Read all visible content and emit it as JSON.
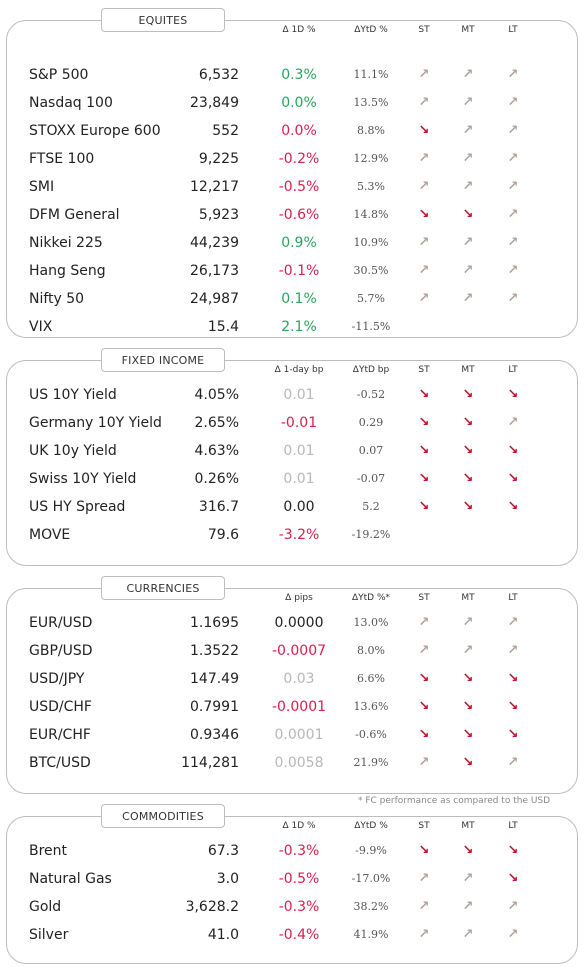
{
  "sections": [
    {
      "id": "equities",
      "title": "EQUITES",
      "headers": {
        "d1": "Δ 1D %",
        "ytd": "ΔYtD %",
        "st": "ST",
        "mt": "MT",
        "lt": "LT"
      },
      "rows": [
        {
          "name": "S&P 500",
          "value": "6,532",
          "d1": "0.3%",
          "d1_class": "pos",
          "ytd": "11.1%",
          "st": "up",
          "mt": "up",
          "lt": "up"
        },
        {
          "name": "Nasdaq 100",
          "value": "23,849",
          "d1": "0.0%",
          "d1_class": "pos",
          "ytd": "13.5%",
          "st": "up",
          "mt": "up",
          "lt": "up"
        },
        {
          "name": "STOXX Europe 600",
          "value": "552",
          "d1": "0.0%",
          "d1_class": "neg",
          "ytd": "8.8%",
          "st": "down",
          "mt": "up",
          "lt": "up"
        },
        {
          "name": "FTSE 100",
          "value": "9,225",
          "d1": "-0.2%",
          "d1_class": "neg",
          "ytd": "12.9%",
          "st": "up",
          "mt": "up",
          "lt": "up"
        },
        {
          "name": "SMI",
          "value": "12,217",
          "d1": "-0.5%",
          "d1_class": "neg",
          "ytd": "5.3%",
          "st": "up",
          "mt": "up",
          "lt": "up"
        },
        {
          "name": "DFM General",
          "value": "5,923",
          "d1": "-0.6%",
          "d1_class": "neg",
          "ytd": "14.8%",
          "st": "down",
          "mt": "down",
          "lt": "up"
        },
        {
          "name": "Nikkei 225",
          "value": "44,239",
          "d1": "0.9%",
          "d1_class": "pos",
          "ytd": "10.9%",
          "st": "up",
          "mt": "up",
          "lt": "up"
        },
        {
          "name": "Hang Seng",
          "value": "26,173",
          "d1": "-0.1%",
          "d1_class": "neg",
          "ytd": "30.5%",
          "st": "up",
          "mt": "up",
          "lt": "up"
        },
        {
          "name": "Nifty  50",
          "value": "24,987",
          "d1": "0.1%",
          "d1_class": "pos",
          "ytd": "5.7%",
          "st": "up",
          "mt": "up",
          "lt": "up"
        },
        {
          "name": "VIX",
          "value": "15.4",
          "d1": "2.1%",
          "d1_class": "pos",
          "ytd": "-11.5%",
          "st": "",
          "mt": "",
          "lt": ""
        }
      ]
    },
    {
      "id": "fixed-income",
      "title": "FIXED INCOME",
      "headers": {
        "d1": "Δ 1-day bp",
        "ytd": "ΔYtD bp",
        "st": "ST",
        "mt": "MT",
        "lt": "LT"
      },
      "rows": [
        {
          "name": "US 10Y Yield",
          "value": "4.05%",
          "d1": "0.01",
          "d1_class": "flat",
          "ytd": "-0.52",
          "st": "down",
          "mt": "down",
          "lt": "down"
        },
        {
          "name": "Germany 10Y Yield",
          "value": "2.65%",
          "d1": "-0.01",
          "d1_class": "neg",
          "ytd": "0.29",
          "st": "down",
          "mt": "down",
          "lt": "up"
        },
        {
          "name": "UK 10y Yield",
          "value": "4.63%",
          "d1": "0.01",
          "d1_class": "flat",
          "ytd": "0.07",
          "st": "down",
          "mt": "down",
          "lt": "down"
        },
        {
          "name": "Swiss 10Y Yield",
          "value": "0.26%",
          "d1": "0.01",
          "d1_class": "flat",
          "ytd": "-0.07",
          "st": "down",
          "mt": "down",
          "lt": "down"
        },
        {
          "name": "US HY Spread",
          "value": "316.7",
          "d1": "0.00",
          "d1_class": "neu",
          "ytd": "5.2",
          "st": "down",
          "mt": "down",
          "lt": "down"
        },
        {
          "name": "MOVE",
          "value": "79.6",
          "d1": "-3.2%",
          "d1_class": "neg",
          "ytd": "-19.2%",
          "st": "",
          "mt": "",
          "lt": ""
        }
      ]
    },
    {
      "id": "currencies",
      "title": "CURRENCIES",
      "headers": {
        "d1": "Δ pips",
        "ytd": "ΔYtD %*",
        "st": "ST",
        "mt": "MT",
        "lt": "LT"
      },
      "rows": [
        {
          "name": "EUR/USD",
          "value": "1.1695",
          "d1": "0.0000",
          "d1_class": "neu",
          "ytd": "13.0%",
          "st": "up",
          "mt": "up",
          "lt": "up"
        },
        {
          "name": "GBP/USD",
          "value": "1.3522",
          "d1": "-0.0007",
          "d1_class": "neg",
          "ytd": "8.0%",
          "st": "up",
          "mt": "up",
          "lt": "up"
        },
        {
          "name": "USD/JPY",
          "value": "147.49",
          "d1": "0.03",
          "d1_class": "flat",
          "ytd": "6.6%",
          "st": "down",
          "mt": "down",
          "lt": "down"
        },
        {
          "name": "USD/CHF",
          "value": "0.7991",
          "d1": "-0.0001",
          "d1_class": "neg",
          "ytd": "13.6%",
          "st": "down",
          "mt": "down",
          "lt": "down"
        },
        {
          "name": "EUR/CHF",
          "value": "0.9346",
          "d1": "0.0001",
          "d1_class": "flat",
          "ytd": "-0.6%",
          "st": "down",
          "mt": "down",
          "lt": "down"
        },
        {
          "name": "BTC/USD",
          "value": "114,281",
          "d1": "0.0058",
          "d1_class": "flat",
          "ytd": "21.9%",
          "st": "up",
          "mt": "down",
          "lt": "up"
        }
      ]
    },
    {
      "id": "commodities",
      "title": "COMMODITIES",
      "headers": {
        "d1": "Δ 1D %",
        "ytd": "ΔYtD %",
        "st": "ST",
        "mt": "MT",
        "lt": "LT"
      },
      "rows": [
        {
          "name": "Brent",
          "value": "67.3",
          "d1": "-0.3%",
          "d1_class": "neg",
          "ytd": "-9.9%",
          "st": "down",
          "mt": "down",
          "lt": "down"
        },
        {
          "name": "Natural Gas",
          "value": "3.0",
          "d1": "-0.5%",
          "d1_class": "neg",
          "ytd": "-17.0%",
          "st": "up",
          "mt": "up",
          "lt": "down"
        },
        {
          "name": "Gold",
          "value": "3,628.2",
          "d1": "-0.3%",
          "d1_class": "neg",
          "ytd": "38.2%",
          "st": "up",
          "mt": "up",
          "lt": "up"
        },
        {
          "name": "Silver",
          "value": "41.0",
          "d1": "-0.4%",
          "d1_class": "neg",
          "ytd": "41.9%",
          "st": "up",
          "mt": "up",
          "lt": "up"
        }
      ]
    }
  ],
  "footnote": "* FC performance as compared to the USD",
  "icons": {
    "up": "arrow-up-right-icon",
    "down": "arrow-down-right-icon"
  },
  "colors": {
    "up_arrow": "#b0a49c",
    "down_arrow": "#c0102a",
    "positive": "#2ca25f",
    "negative": "#d6204e"
  }
}
